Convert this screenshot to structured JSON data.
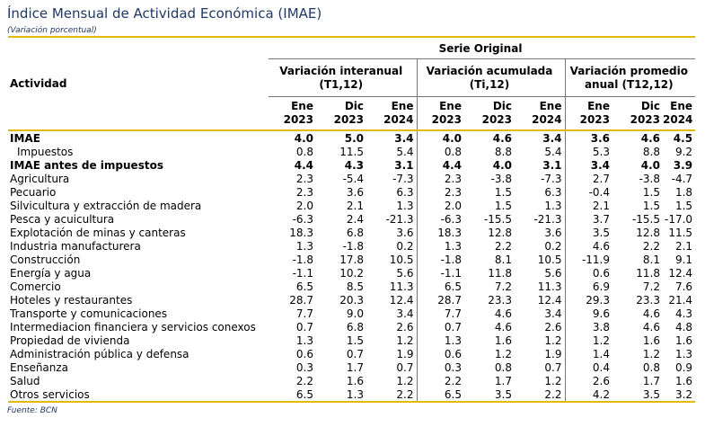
{
  "title": "Índice Mensual de Actividad Económica (IMAE)",
  "subtitle": "(Variación porcentual)",
  "source": "Fuente: BCN",
  "table": {
    "serie_label": "Serie Original",
    "activity_label": "Actividad",
    "groups": [
      {
        "line1": "Variación interanual",
        "line2": "(T1,12)"
      },
      {
        "line1": "Variación acumulada",
        "line2": "(Ti,12)"
      },
      {
        "line1": "Variación promedio",
        "line2": "anual (T12,12)"
      }
    ],
    "periods": [
      {
        "m": "Ene",
        "y": "2023"
      },
      {
        "m": "Dic",
        "y": "2023"
      },
      {
        "m": "Ene",
        "y": "2024"
      },
      {
        "m": "Ene",
        "y": "2023"
      },
      {
        "m": "Dic",
        "y": "2023"
      },
      {
        "m": "Ene",
        "y": "2024"
      },
      {
        "m": "Ene",
        "y": "2023"
      },
      {
        "m": "Dic",
        "y": "2023"
      },
      {
        "m": "Ene",
        "y": "2024"
      }
    ],
    "rows": [
      {
        "label": "IMAE",
        "bold": true,
        "values": [
          "4.0",
          "5.0",
          "3.4",
          "4.0",
          "4.6",
          "3.4",
          "3.6",
          "4.6",
          "4.5"
        ]
      },
      {
        "label": "Impuestos",
        "indent": true,
        "values": [
          "0.8",
          "11.5",
          "5.4",
          "0.8",
          "8.8",
          "5.4",
          "5.3",
          "8.8",
          "9.2"
        ]
      },
      {
        "label": "IMAE antes de impuestos",
        "bold": true,
        "values": [
          "4.4",
          "4.3",
          "3.1",
          "4.4",
          "4.0",
          "3.1",
          "3.4",
          "4.0",
          "3.9"
        ]
      },
      {
        "label": "Agricultura",
        "values": [
          "2.3",
          "-5.4",
          "-7.3",
          "2.3",
          "-3.8",
          "-7.3",
          "2.7",
          "-3.8",
          "-4.7"
        ]
      },
      {
        "label": "Pecuario",
        "values": [
          "2.3",
          "3.6",
          "6.3",
          "2.3",
          "1.5",
          "6.3",
          "-0.4",
          "1.5",
          "1.8"
        ]
      },
      {
        "label": "Silvicultura y extracción de madera",
        "values": [
          "2.0",
          "2.1",
          "1.3",
          "2.0",
          "1.5",
          "1.3",
          "2.1",
          "1.5",
          "1.5"
        ]
      },
      {
        "label": "Pesca y acuicultura",
        "values": [
          "-6.3",
          "2.4",
          "-21.3",
          "-6.3",
          "-15.5",
          "-21.3",
          "3.7",
          "-15.5",
          "-17.0"
        ]
      },
      {
        "label": "Explotación de minas y canteras",
        "values": [
          "18.3",
          "6.8",
          "3.6",
          "18.3",
          "12.8",
          "3.6",
          "3.5",
          "12.8",
          "11.5"
        ]
      },
      {
        "label": "Industria manufacturera",
        "values": [
          "1.3",
          "-1.8",
          "0.2",
          "1.3",
          "2.2",
          "0.2",
          "4.6",
          "2.2",
          "2.1"
        ]
      },
      {
        "label": "Construcción",
        "values": [
          "-1.8",
          "17.8",
          "10.5",
          "-1.8",
          "8.1",
          "10.5",
          "-11.9",
          "8.1",
          "9.1"
        ]
      },
      {
        "label": "Energía y agua",
        "values": [
          "-1.1",
          "10.2",
          "5.6",
          "-1.1",
          "11.8",
          "5.6",
          "0.6",
          "11.8",
          "12.4"
        ]
      },
      {
        "label": "Comercio",
        "values": [
          "6.5",
          "8.5",
          "11.3",
          "6.5",
          "7.2",
          "11.3",
          "6.9",
          "7.2",
          "7.6"
        ]
      },
      {
        "label": "Hoteles y restaurantes",
        "values": [
          "28.7",
          "20.3",
          "12.4",
          "28.7",
          "23.3",
          "12.4",
          "29.3",
          "23.3",
          "21.4"
        ]
      },
      {
        "label": "Transporte y comunicaciones",
        "values": [
          "7.7",
          "9.0",
          "3.4",
          "7.7",
          "4.6",
          "3.4",
          "9.6",
          "4.6",
          "4.3"
        ]
      },
      {
        "label": "Intermediacion financiera y servicios conexos",
        "values": [
          "0.7",
          "6.8",
          "2.6",
          "0.7",
          "4.6",
          "2.6",
          "3.8",
          "4.6",
          "4.8"
        ]
      },
      {
        "label": "Propiedad de vivienda",
        "values": [
          "1.3",
          "1.5",
          "1.2",
          "1.3",
          "1.6",
          "1.2",
          "1.2",
          "1.6",
          "1.6"
        ]
      },
      {
        "label": "Administración pública y defensa",
        "values": [
          "0.6",
          "0.7",
          "1.9",
          "0.6",
          "1.2",
          "1.9",
          "1.4",
          "1.2",
          "1.3"
        ]
      },
      {
        "label": "Enseñanza",
        "values": [
          "0.3",
          "1.7",
          "0.7",
          "0.3",
          "0.8",
          "0.7",
          "0.4",
          "0.8",
          "0.9"
        ]
      },
      {
        "label": "Salud",
        "values": [
          "2.2",
          "1.6",
          "1.2",
          "2.2",
          "1.7",
          "1.2",
          "2.6",
          "1.7",
          "1.6"
        ]
      },
      {
        "label": "Otros servicios",
        "values": [
          "6.5",
          "1.3",
          "2.2",
          "6.5",
          "3.5",
          "2.2",
          "4.2",
          "3.5",
          "3.2"
        ]
      }
    ]
  }
}
